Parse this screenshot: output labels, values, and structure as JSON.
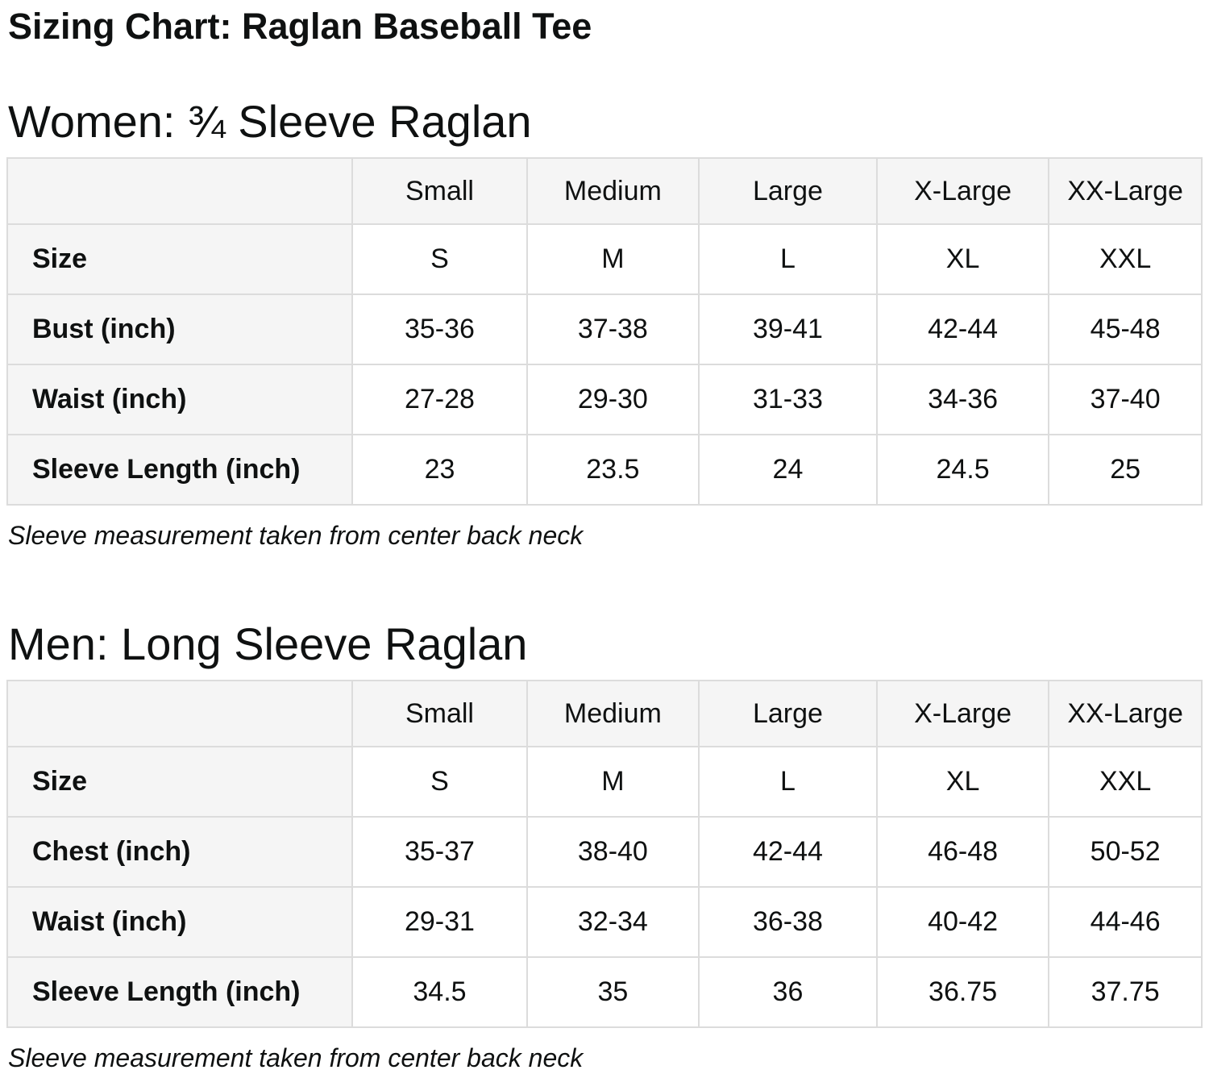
{
  "page": {
    "title": "Sizing Chart: Raglan Baseball Tee"
  },
  "colors": {
    "page_background": "#ffffff",
    "text": "#0f1111",
    "table_header_background": "#f5f5f5",
    "table_border": "#dcdcdc",
    "data_cell_background": "#ffffff"
  },
  "sections": [
    {
      "heading": "Women: ¾ Sleeve Raglan",
      "note": "Sleeve measurement taken from center back neck",
      "table": {
        "column_headers": [
          "Small",
          "Medium",
          "Large",
          "X-Large",
          "XX-Large"
        ],
        "rows": [
          {
            "label": "Size",
            "values": [
              "S",
              "M",
              "L",
              "XL",
              "XXL"
            ]
          },
          {
            "label": "Bust (inch)",
            "values": [
              "35-36",
              "37-38",
              "39-41",
              "42-44",
              "45-48"
            ]
          },
          {
            "label": "Waist (inch)",
            "values": [
              "27-28",
              "29-30",
              "31-33",
              "34-36",
              "37-40"
            ]
          },
          {
            "label": "Sleeve Length (inch)",
            "values": [
              "23",
              "23.5",
              "24",
              "24.5",
              "25"
            ]
          }
        ]
      }
    },
    {
      "heading": "Men: Long Sleeve Raglan",
      "note": "Sleeve measurement taken from center back neck",
      "table": {
        "column_headers": [
          "Small",
          "Medium",
          "Large",
          "X-Large",
          "XX-Large"
        ],
        "rows": [
          {
            "label": "Size",
            "values": [
              "S",
              "M",
              "L",
              "XL",
              "XXL"
            ]
          },
          {
            "label": "Chest (inch)",
            "values": [
              "35-37",
              "38-40",
              "42-44",
              "46-48",
              "50-52"
            ]
          },
          {
            "label": "Waist (inch)",
            "values": [
              "29-31",
              "32-34",
              "36-38",
              "40-42",
              "44-46"
            ]
          },
          {
            "label": "Sleeve Length (inch)",
            "values": [
              "34.5",
              "35",
              "36",
              "36.75",
              "37.75"
            ]
          }
        ]
      }
    }
  ],
  "layout": {
    "column_widths_percent": [
      28.9,
      14.6,
      14.4,
      14.9,
      14.4,
      12.8
    ]
  }
}
